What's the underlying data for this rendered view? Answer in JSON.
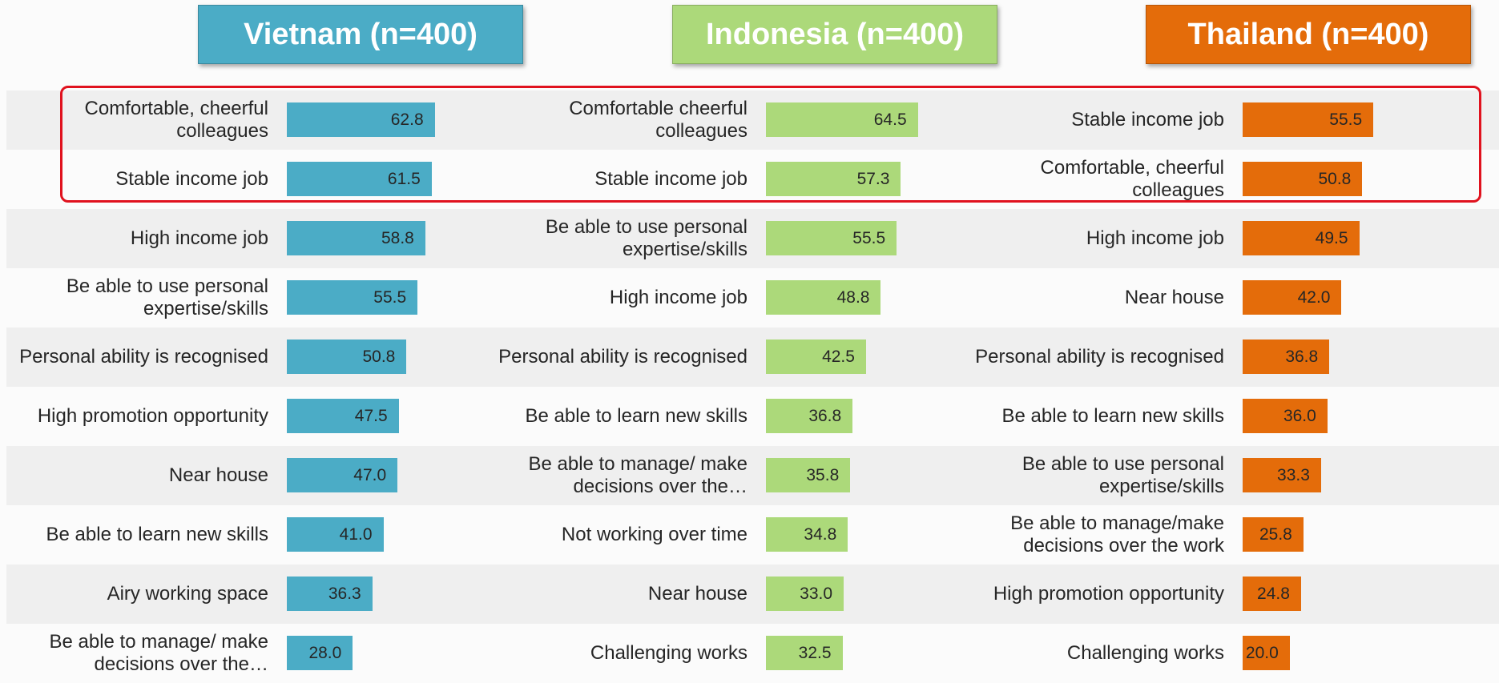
{
  "chart_data": [
    {
      "type": "bar",
      "title": "Vietnam (n=400)",
      "color": "#4bacc6",
      "categories": [
        "Comfortable, cheerful colleagues",
        "Stable income job",
        "High income job",
        "Be able to use personal expertise/skills",
        "Personal ability is recognised",
        "High promotion opportunity",
        "Near house",
        "Be able to learn new skills",
        "Airy working space",
        "Be able to manage/ make decisions over the…"
      ],
      "values": [
        62.8,
        61.5,
        58.8,
        55.5,
        50.8,
        47.5,
        47.0,
        41.0,
        36.3,
        28.0
      ],
      "value_labels": [
        "62.8",
        "61.5",
        "58.8",
        "55.5",
        "50.8",
        "47.5",
        "47.0",
        "41.0",
        "36.3",
        "28.0"
      ]
    },
    {
      "type": "bar",
      "title": "Indonesia (n=400)",
      "color": "#acd97a",
      "categories": [
        "Comfortable cheerful colleagues",
        "Stable income job",
        "Be able to use personal expertise/skills",
        "High income job",
        "Personal ability is recognised",
        "Be able to learn new skills",
        "Be able to manage/ make decisions over the…",
        "Not working over time",
        "Near house",
        "Challenging works"
      ],
      "values": [
        64.5,
        57.3,
        55.5,
        48.8,
        42.5,
        36.8,
        35.8,
        34.8,
        33.0,
        32.5
      ],
      "value_labels": [
        "64.5",
        "57.3",
        "55.5",
        "48.8",
        "42.5",
        "36.8",
        "35.8",
        "34.8",
        "33.0",
        "32.5"
      ]
    },
    {
      "type": "bar",
      "title": "Thailand (n=400)",
      "color": "#e46c0a",
      "categories": [
        "Stable income job",
        "Comfortable, cheerful colleagues",
        "High income job",
        "Near house",
        "Personal ability is recognised",
        "Be able to learn new skills",
        "Be able to use personal expertise/skills",
        "Be able to manage/make decisions over the work",
        "High promotion opportunity",
        "Challenging works"
      ],
      "values": [
        55.5,
        50.8,
        49.5,
        42.0,
        36.8,
        36.0,
        33.3,
        25.8,
        24.8,
        20.0
      ],
      "value_labels": [
        "55.5",
        "50.8",
        "49.5",
        "42.0",
        "36.8",
        "36.0",
        "33.3",
        "25.8",
        "24.8",
        "20.0"
      ]
    }
  ]
}
